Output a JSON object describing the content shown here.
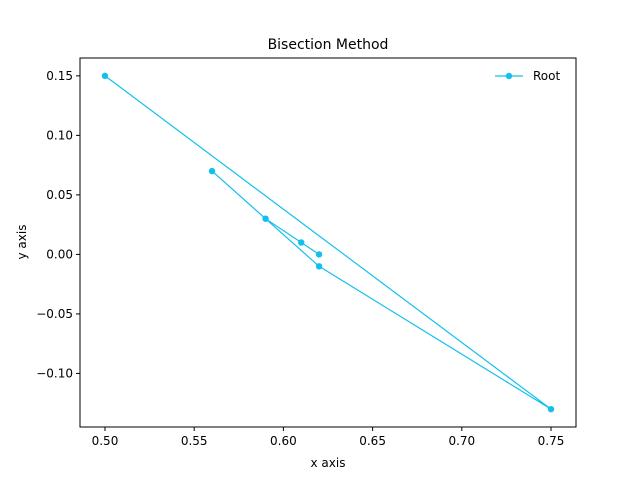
{
  "chart_data": {
    "type": "line",
    "title": "Bisection Method",
    "xlabel": "x axis",
    "ylabel": "y axis",
    "xlim": [
      0.486,
      0.764
    ],
    "ylim": [
      -0.145,
      0.165
    ],
    "xticks": [
      0.5,
      0.55,
      0.6,
      0.65,
      0.7,
      0.75
    ],
    "xtick_labels": [
      "0.50",
      "0.55",
      "0.60",
      "0.65",
      "0.70",
      "0.75"
    ],
    "yticks": [
      -0.1,
      -0.05,
      0.0,
      0.05,
      0.1,
      0.15
    ],
    "ytick_labels": [
      "−0.10",
      "−0.05",
      "0.00",
      "0.05",
      "0.10",
      "0.15"
    ],
    "grid": false,
    "legend_position": "top-right",
    "series": [
      {
        "name": "Root",
        "color": "#13c0ed",
        "marker": "circle",
        "x": [
          0.5,
          0.75,
          0.62,
          0.56,
          0.59,
          0.61,
          0.62
        ],
        "y": [
          0.15,
          -0.13,
          -0.01,
          0.07,
          0.03,
          0.01,
          0.0
        ]
      }
    ]
  }
}
